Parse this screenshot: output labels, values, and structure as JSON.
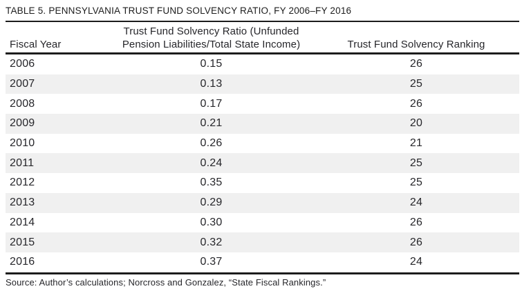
{
  "table": {
    "title": "TABLE 5. PENNSYLVANIA TRUST FUND SOLVENCY RATIO, FY 2006–FY 2016",
    "header": {
      "col1": "Fiscal Year",
      "col2_line1": "Trust Fund Solvency Ratio (Unfunded",
      "col2_line2": "Pension Liabilities/Total State Income)",
      "col3": "Trust Fund Solvency Ranking"
    },
    "rows": [
      {
        "year": "2006",
        "ratio": "0.15",
        "ranking": "26"
      },
      {
        "year": "2007",
        "ratio": "0.13",
        "ranking": "25"
      },
      {
        "year": "2008",
        "ratio": "0.17",
        "ranking": "26"
      },
      {
        "year": "2009",
        "ratio": "0.21",
        "ranking": "20"
      },
      {
        "year": "2010",
        "ratio": "0.26",
        "ranking": "21"
      },
      {
        "year": "2011",
        "ratio": "0.24",
        "ranking": "25"
      },
      {
        "year": "2012",
        "ratio": "0.35",
        "ranking": "25"
      },
      {
        "year": "2013",
        "ratio": "0.29",
        "ranking": "24"
      },
      {
        "year": "2014",
        "ratio": "0.30",
        "ranking": "26"
      },
      {
        "year": "2015",
        "ratio": "0.32",
        "ranking": "26"
      },
      {
        "year": "2016",
        "ratio": "0.37",
        "ranking": "24"
      }
    ],
    "source": "Source: Author’s calculations; Norcross and Gonzalez, “State Fiscal Rankings.”"
  },
  "colors": {
    "row_stripe": "#f0f0f0",
    "rule": "#1c1c1c",
    "text": "#26262a"
  },
  "chart_data": {
    "type": "table",
    "title": "TABLE 5. PENNSYLVANIA TRUST FUND SOLVENCY RATIO, FY 2006–FY 2016",
    "columns": [
      "Fiscal Year",
      "Trust Fund Solvency Ratio (Unfunded Pension Liabilities/Total State Income)",
      "Trust Fund Solvency Ranking"
    ],
    "x": [
      2006,
      2007,
      2008,
      2009,
      2010,
      2011,
      2012,
      2013,
      2014,
      2015,
      2016
    ],
    "series": [
      {
        "name": "Trust Fund Solvency Ratio",
        "values": [
          0.15,
          0.13,
          0.17,
          0.21,
          0.26,
          0.24,
          0.35,
          0.29,
          0.3,
          0.32,
          0.37
        ]
      },
      {
        "name": "Trust Fund Solvency Ranking",
        "values": [
          26,
          25,
          26,
          20,
          21,
          25,
          25,
          24,
          26,
          26,
          24
        ]
      }
    ]
  }
}
